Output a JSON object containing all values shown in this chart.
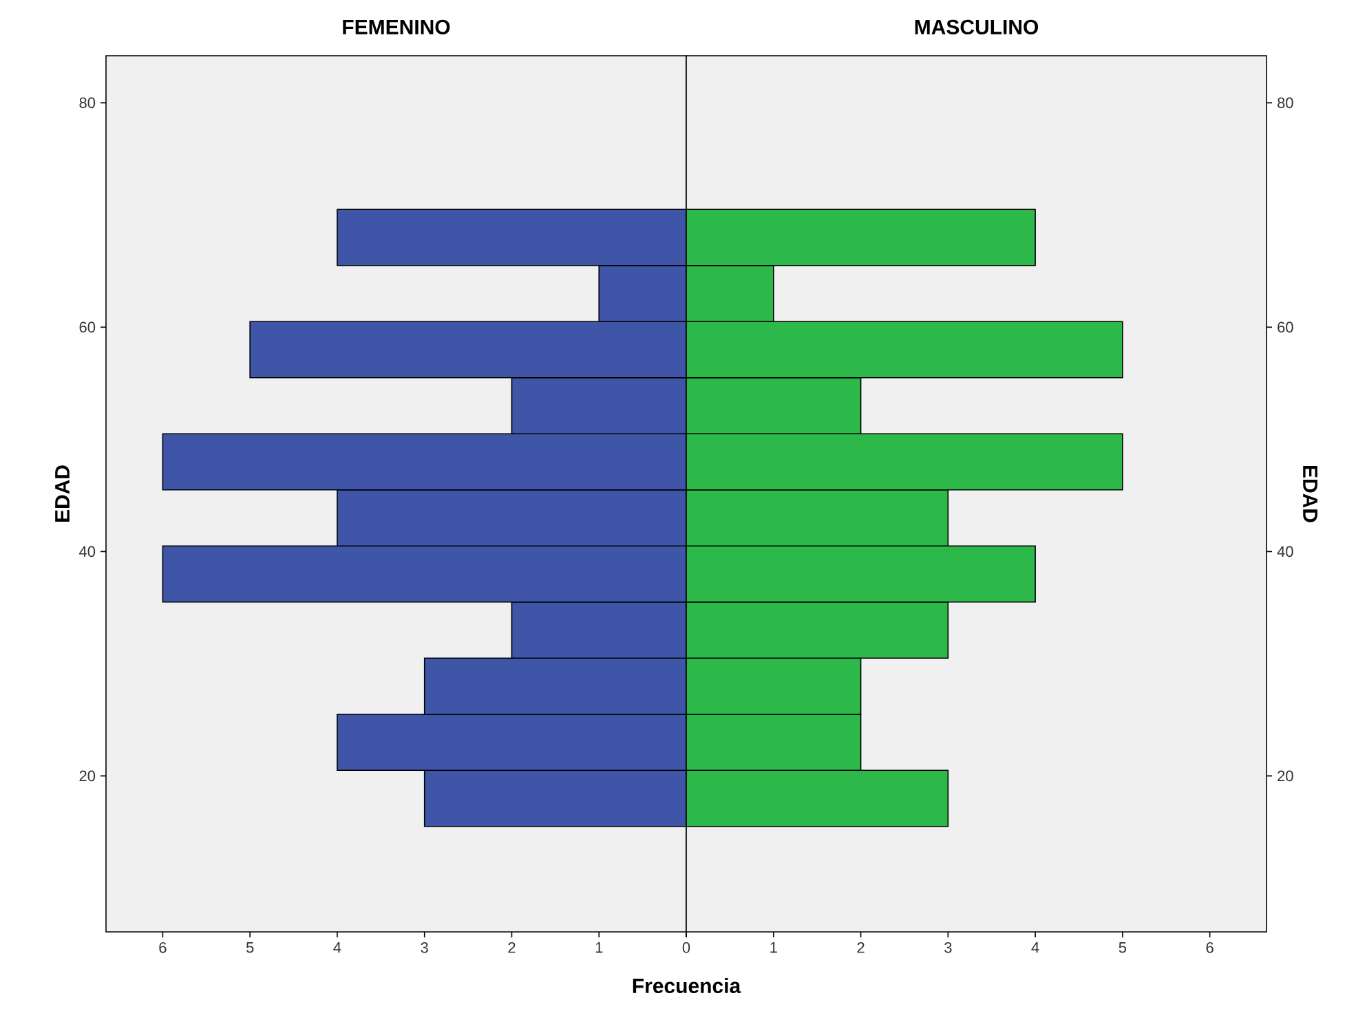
{
  "chart_data": [
    {
      "type": "histogram",
      "orientation": "horizontal",
      "title": "FEMENINO",
      "xlabel": "Frecuencia",
      "ylabel": "EDAD",
      "bins": [
        15.5,
        20.5,
        25.5,
        30.5,
        35.5,
        40.5,
        45.5,
        50.5,
        55.5,
        60.5,
        65.5,
        70.5
      ],
      "values": [
        3,
        4,
        3,
        2,
        6,
        4,
        6,
        2,
        5,
        1,
        4
      ],
      "color": "#3f56a8",
      "xlim": [
        6.65,
        0
      ],
      "xticks": [
        0,
        1,
        2,
        3,
        4,
        5,
        6
      ],
      "ylim": [
        6.1,
        84.2
      ],
      "yticks": [
        20,
        40,
        60,
        80
      ]
    },
    {
      "type": "histogram",
      "orientation": "horizontal",
      "title": "MASCULINO",
      "ylabel": "EDAD",
      "bins": [
        15.5,
        20.5,
        25.5,
        30.5,
        35.5,
        40.5,
        45.5,
        50.5,
        55.5,
        60.5,
        65.5,
        70.5
      ],
      "values": [
        3,
        2,
        2,
        3,
        4,
        3,
        5,
        2,
        5,
        1,
        4
      ],
      "color": "#2db84a",
      "xlim": [
        0,
        6.65
      ],
      "xticks": [
        {
          "value": 0,
          "label": null
        },
        1,
        2,
        3,
        4,
        5,
        6
      ],
      "ylim": [
        6.1,
        84.2
      ],
      "yticks": [
        20,
        40,
        60,
        80
      ]
    }
  ]
}
